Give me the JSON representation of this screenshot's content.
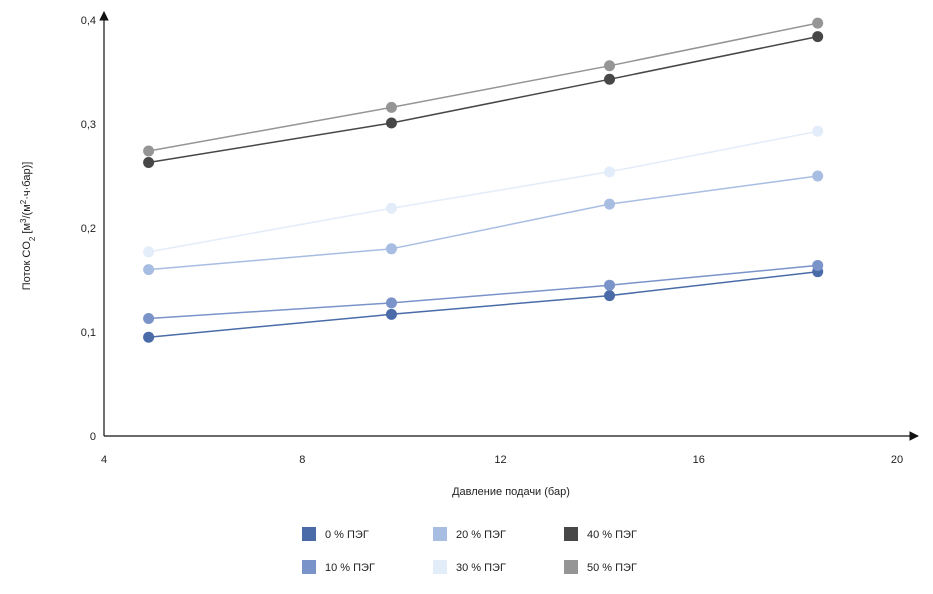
{
  "chart_data": {
    "type": "line",
    "xlabel": "Давление подачи (бар)",
    "ylabel": {
      "prefix": "Поток CO",
      "sub": "2",
      "middle": " [м",
      "sup1": "3",
      "middle2": "/(м",
      "sup2": "2",
      "suffix": "·ч·бар)]"
    },
    "xlim": [
      4,
      20
    ],
    "ylim": [
      0,
      0.4
    ],
    "x_ticks": [
      {
        "value": 4,
        "label": "4"
      },
      {
        "value": 8,
        "label": "8"
      },
      {
        "value": 12,
        "label": "12"
      },
      {
        "value": 16,
        "label": "16"
      },
      {
        "value": 20,
        "label": "20"
      }
    ],
    "y_ticks": [
      {
        "value": 0,
        "label": "0"
      },
      {
        "value": 0.1,
        "label": "0,1"
      },
      {
        "value": 0.2,
        "label": "0,2"
      },
      {
        "value": 0.3,
        "label": "0,3"
      },
      {
        "value": 0.4,
        "label": "0,4"
      }
    ],
    "grid": false,
    "legend_placement": "bottom",
    "x": [
      4.9,
      9.8,
      14.2,
      18.4
    ],
    "series": [
      {
        "name": "0 % ПЭГ",
        "color": "#4a6ba8",
        "values": [
          0.095,
          0.117,
          0.135,
          0.158
        ]
      },
      {
        "name": "10 % ПЭГ",
        "color": "#7a93c9",
        "values": [
          0.113,
          0.128,
          0.145,
          0.164
        ]
      },
      {
        "name": "20 % ПЭГ",
        "color": "#a8bde2",
        "values": [
          0.16,
          0.18,
          0.223,
          0.25
        ]
      },
      {
        "name": "30 % ПЭГ",
        "color": "#e3ecf9",
        "values": [
          0.177,
          0.219,
          0.254,
          0.293
        ]
      },
      {
        "name": "40 % ПЭГ",
        "color": "#474747",
        "values": [
          0.263,
          0.301,
          0.343,
          0.384
        ]
      },
      {
        "name": "50 % ПЭГ",
        "color": "#959595",
        "values": [
          0.274,
          0.316,
          0.356,
          0.397
        ]
      }
    ]
  }
}
